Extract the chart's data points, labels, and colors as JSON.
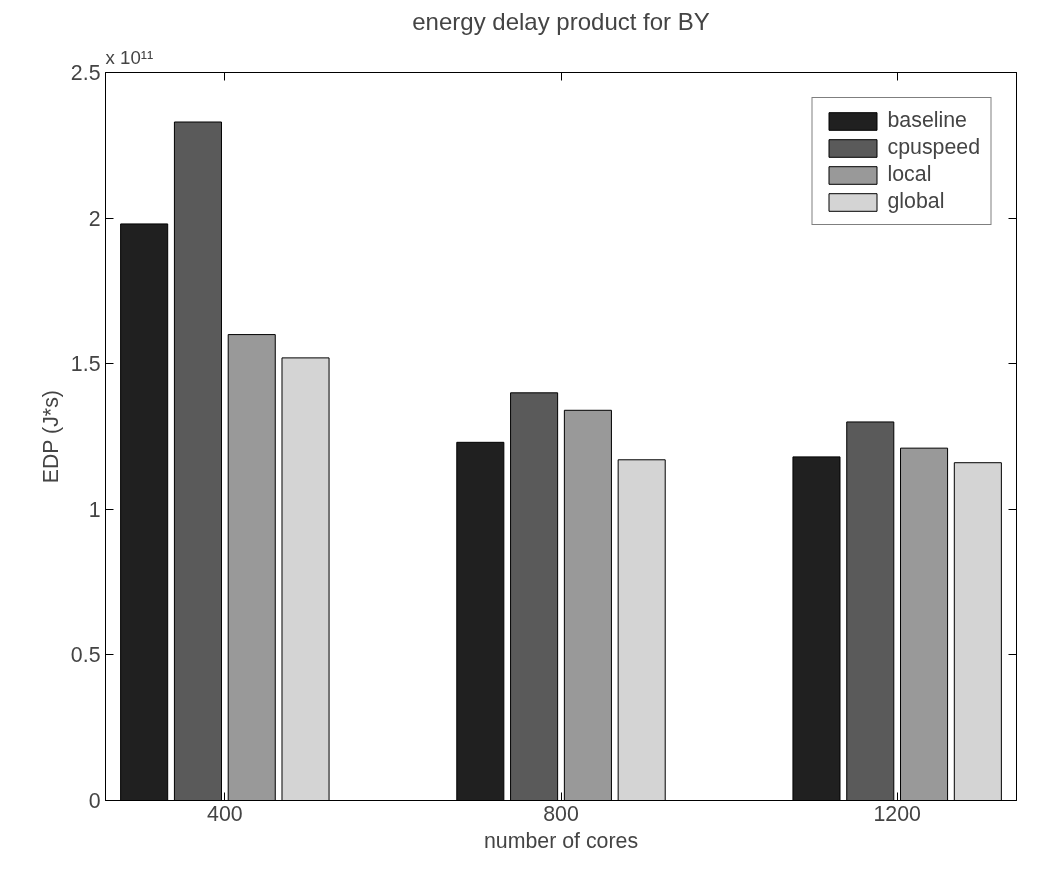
{
  "chart_data": {
    "type": "bar",
    "title": "energy delay product for BY",
    "xlabel": "number of cores",
    "ylabel": "EDP (J*s)",
    "categories": [
      "400",
      "800",
      "1200"
    ],
    "series": [
      {
        "name": "baseline",
        "color": "#202020",
        "values": [
          1.98,
          1.23,
          1.18
        ]
      },
      {
        "name": "cpuspeed",
        "color": "#5a5a5a",
        "values": [
          2.33,
          1.4,
          1.3
        ]
      },
      {
        "name": "local",
        "color": "#999999",
        "values": [
          1.6,
          1.34,
          1.21
        ]
      },
      {
        "name": "global",
        "color": "#d4d4d4",
        "values": [
          1.52,
          1.17,
          1.16
        ]
      }
    ],
    "ylim": [
      0,
      2.5
    ],
    "yticks": [
      0,
      0.5,
      1,
      1.5,
      2,
      2.5
    ],
    "annotations": [
      "x 10¹¹"
    ],
    "grid": false,
    "legend": "top right"
  }
}
